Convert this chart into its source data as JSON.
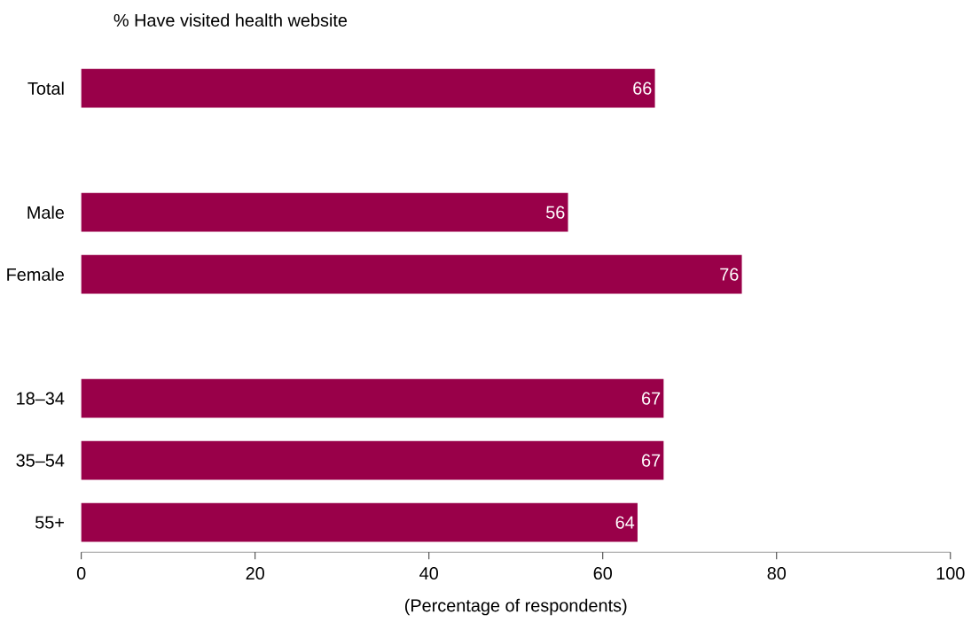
{
  "chart_data": {
    "type": "bar",
    "orientation": "horizontal",
    "title": "% Have visited health website",
    "xlabel": "(Percentage of respondents)",
    "categories": [
      "Total",
      null,
      "Male",
      "Female",
      null,
      "18–34",
      "35–54",
      "55+"
    ],
    "values": [
      66,
      null,
      56,
      76,
      null,
      67,
      67,
      64
    ],
    "color": "#990049",
    "xlim": [
      0,
      100
    ],
    "xticks": [
      0,
      20,
      40,
      60,
      80,
      100
    ],
    "data_labels": true
  }
}
